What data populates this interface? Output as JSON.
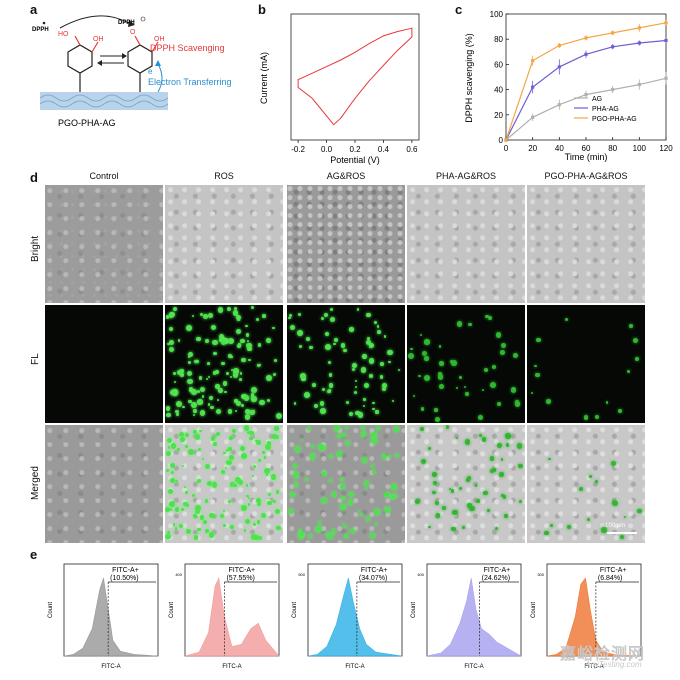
{
  "panel_a": {
    "letter": "a",
    "dpph_radical": "DPPH",
    "dpph_anion": "DPPH",
    "oh_left": "HO",
    "oh_right": "OH",
    "o_left": "O",
    "oh_right2": "OH",
    "scavenging": "DPPH Scavenging",
    "electron_sym": "e",
    "electron_transfer": "Electron Transferring",
    "material": "PGO-PHA-AG"
  },
  "panel_b": {
    "letter": "b",
    "chart_data": {
      "type": "line",
      "title": "",
      "xlabel": "Potential (V)",
      "ylabel": "Current (mA)",
      "x_ticks": [
        "-0.2",
        "0.0",
        "0.2",
        "0.4",
        "0.6"
      ],
      "xlim": [
        -0.25,
        0.65
      ],
      "ylim": [
        -7,
        4.5
      ],
      "series": [
        {
          "name": "CV",
          "color": "#e8373a",
          "x": [
            -0.2,
            -0.1,
            0.0,
            0.1,
            0.2,
            0.3,
            0.4,
            0.5,
            0.6,
            0.6,
            0.5,
            0.4,
            0.3,
            0.2,
            0.1,
            0.05,
            0.0,
            -0.1,
            -0.2
          ],
          "y": [
            -1.5,
            -0.9,
            -0.3,
            0.3,
            1.0,
            1.8,
            2.5,
            2.9,
            3.2,
            2.4,
            1.2,
            -0.2,
            -1.6,
            -3.2,
            -5.0,
            -5.6,
            -4.8,
            -3.2,
            -2.2
          ]
        }
      ]
    }
  },
  "panel_c": {
    "letter": "c",
    "chart_data": {
      "type": "line",
      "title": "",
      "xlabel": "Time (min)",
      "ylabel": "DPPH scavenging (%)",
      "categories": [
        0,
        20,
        40,
        60,
        80,
        100,
        120
      ],
      "x_ticks": [
        "0",
        "20",
        "40",
        "60",
        "80",
        "100",
        "120"
      ],
      "y_ticks": [
        "0",
        "20",
        "40",
        "60",
        "80",
        "100"
      ],
      "xlim": [
        0,
        120
      ],
      "ylim": [
        0,
        100
      ],
      "series": [
        {
          "name": "AG",
          "color": "#b0b0b0",
          "values": [
            0,
            18,
            28,
            36,
            40,
            44,
            49
          ],
          "errors": [
            0,
            3,
            4,
            3,
            3,
            4,
            5
          ]
        },
        {
          "name": "PHA-AG",
          "color": "#6c5fd3",
          "values": [
            0,
            42,
            58,
            68,
            74,
            77,
            79
          ],
          "errors": [
            0,
            5,
            6,
            3,
            2,
            2,
            2
          ]
        },
        {
          "name": "PGO-PHA-AG",
          "color": "#f5a542",
          "values": [
            0,
            63,
            75,
            81,
            85,
            89,
            93
          ],
          "errors": [
            0,
            4,
            2,
            2,
            2,
            3,
            2
          ]
        }
      ],
      "legend": [
        "AG",
        "PHA-AG",
        "PGO-PHA-AG"
      ]
    }
  },
  "panel_d": {
    "letter": "d",
    "columns": [
      "Control",
      "ROS",
      "AG&ROS",
      "PHA-AG&ROS",
      "PGO-PHA-AG&ROS"
    ],
    "rows": [
      "Bright",
      "FL",
      "Merged"
    ],
    "scale_bar": "100 μm"
  },
  "panel_e": {
    "letter": "e",
    "chart_data": [
      {
        "type": "area",
        "gate_label": "FITC-A+",
        "percent": "(10.50%)",
        "value": 10.5,
        "color": "#9c9c9c",
        "xlabel": "FITC-A",
        "ylabel": "Count",
        "y_tick": ""
      },
      {
        "type": "area",
        "gate_label": "FITC-A+",
        "percent": "(57.55%)",
        "value": 57.55,
        "color": "#f2a0a0",
        "xlabel": "FITC-A",
        "ylabel": "Count",
        "y_tick": "400"
      },
      {
        "type": "area",
        "gate_label": "FITC-A+",
        "percent": "(34.07%)",
        "value": 34.07,
        "color": "#36b4e6",
        "xlabel": "FITC-A",
        "ylabel": "Count",
        "y_tick": "500"
      },
      {
        "type": "area",
        "gate_label": "FITC-A+",
        "percent": "(24.62%)",
        "value": 24.62,
        "color": "#a9a4ef",
        "xlabel": "FITC-A",
        "ylabel": "Count",
        "y_tick": "400"
      },
      {
        "type": "area",
        "gate_label": "FITC-A+",
        "percent": "(6.84%)",
        "value": 6.84,
        "color": "#f07a3a",
        "xlabel": "FITC-A",
        "ylabel": "Count",
        "y_tick": "300"
      }
    ]
  },
  "watermark": {
    "main": "嘉峪检测网",
    "sub": "AnyTesting.com"
  }
}
